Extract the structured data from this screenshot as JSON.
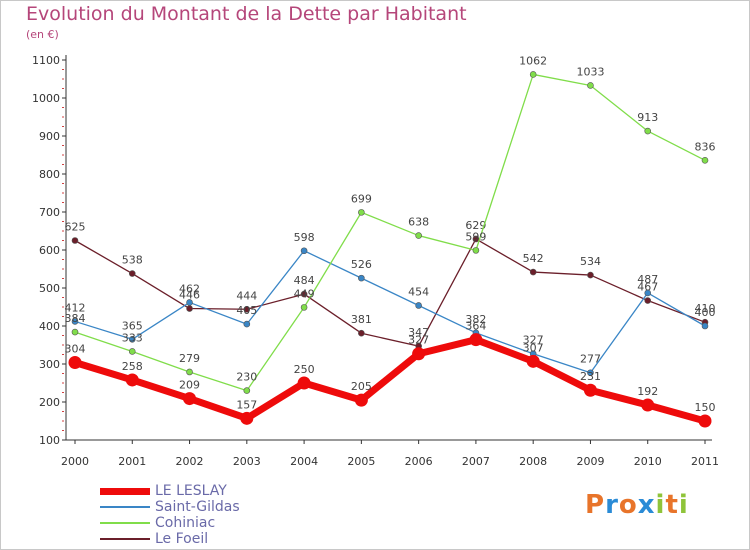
{
  "chart_data": {
    "type": "line",
    "title": "Evolution du Montant de la Dette par Habitant",
    "subtitle": "(en €)",
    "x": [
      "2000",
      "2001",
      "2002",
      "2003",
      "2004",
      "2005",
      "2006",
      "2007",
      "2008",
      "2009",
      "2010",
      "2011"
    ],
    "y_ticks": [
      100,
      200,
      300,
      400,
      500,
      600,
      700,
      800,
      900,
      1000,
      1100
    ],
    "ylim": [
      100,
      1100
    ],
    "grid": false,
    "legend_position": "bottom-left",
    "series": [
      {
        "name": "Le Foeil",
        "color": "#6b1f2a",
        "values": [
          625,
          538,
          446,
          444,
          484,
          381,
          347,
          629,
          542,
          534,
          467,
          410
        ]
      },
      {
        "name": "Saint-Gildas",
        "color": "#3a86c6",
        "values": [
          412,
          365,
          462,
          405,
          598,
          526,
          454,
          382,
          327,
          277,
          487,
          400
        ]
      },
      {
        "name": "Cohiniac",
        "color": "#80dd4a",
        "values": [
          384,
          333,
          279,
          230,
          449,
          699,
          638,
          599,
          1062,
          1033,
          913,
          836
        ]
      },
      {
        "name": "LE LESLAY",
        "color": "#ee0b0b",
        "values": [
          304,
          258,
          209,
          157,
          250,
          205,
          327,
          364,
          307,
          231,
          192,
          150
        ]
      }
    ]
  },
  "legend": {
    "items": [
      {
        "name": "LE LESLAY",
        "color": "#ee0b0b"
      },
      {
        "name": "Saint-Gildas",
        "color": "#3a86c6"
      },
      {
        "name": "Cohiniac",
        "color": "#80dd4a"
      },
      {
        "name": "Le Foeil",
        "color": "#6b1f2a"
      }
    ]
  },
  "logo": {
    "letters": [
      {
        "ch": "P",
        "color": "#e8742a"
      },
      {
        "ch": "r",
        "color": "#2a8bd6"
      },
      {
        "ch": "o",
        "color": "#e8742a"
      },
      {
        "ch": "x",
        "color": "#2a8bd6"
      },
      {
        "ch": "i",
        "color": "#8fc43a"
      },
      {
        "ch": "t",
        "color": "#e8742a"
      },
      {
        "ch": "i",
        "color": "#8fc43a"
      }
    ]
  }
}
